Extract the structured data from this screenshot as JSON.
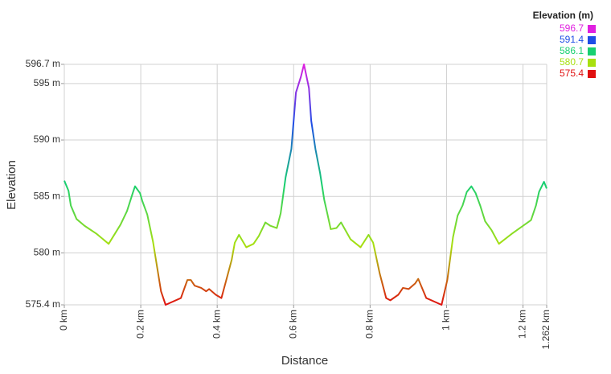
{
  "chart_data": {
    "type": "line",
    "legend_title": "Elevation (m)",
    "xlabel": "Distance",
    "ylabel": "Elevation",
    "color_scale": [
      {
        "value": 596.7,
        "color": "#e020e0"
      },
      {
        "value": 591.4,
        "color": "#1e4ee6"
      },
      {
        "value": 586.1,
        "color": "#18d070"
      },
      {
        "value": 580.7,
        "color": "#a8e010"
      },
      {
        "value": 575.4,
        "color": "#e01010"
      }
    ],
    "x": [
      0,
      0.011,
      0.017,
      0.032,
      0.053,
      0.084,
      0.116,
      0.147,
      0.164,
      0.179,
      0.185,
      0.198,
      0.204,
      0.217,
      0.232,
      0.242,
      0.253,
      0.265,
      0.305,
      0.322,
      0.331,
      0.341,
      0.358,
      0.371,
      0.379,
      0.396,
      0.411,
      0.423,
      0.438,
      0.446,
      0.457,
      0.476,
      0.495,
      0.509,
      0.526,
      0.539,
      0.556,
      0.566,
      0.579,
      0.594,
      0.606,
      0.619,
      0.627,
      0.64,
      0.646,
      0.657,
      0.669,
      0.68,
      0.688,
      0.697,
      0.712,
      0.724,
      0.749,
      0.775,
      0.796,
      0.808,
      0.825,
      0.842,
      0.853,
      0.874,
      0.886,
      0.901,
      0.918,
      0.926,
      0.947,
      0.987,
      1.002,
      1.017,
      1.029,
      1.042,
      1.053,
      1.065,
      1.076,
      1.088,
      1.101,
      1.118,
      1.137,
      1.171,
      1.221,
      1.234,
      1.242,
      1.255,
      1.262
    ],
    "values": [
      586.4,
      585.5,
      584.2,
      583.0,
      582.4,
      581.7,
      580.8,
      582.5,
      583.7,
      585.3,
      585.9,
      585.3,
      584.6,
      583.4,
      581.0,
      578.9,
      576.6,
      575.4,
      576.0,
      577.6,
      577.6,
      577.1,
      576.9,
      576.6,
      576.8,
      576.3,
      576.0,
      577.5,
      579.4,
      580.9,
      581.6,
      580.5,
      580.8,
      581.5,
      582.7,
      582.4,
      582.2,
      583.5,
      586.7,
      589.2,
      594.2,
      595.6,
      596.7,
      594.6,
      591.7,
      589.2,
      587.1,
      584.7,
      583.5,
      582.1,
      582.2,
      582.7,
      581.2,
      580.5,
      581.6,
      580.9,
      578.2,
      576.0,
      575.8,
      576.3,
      576.9,
      576.8,
      577.3,
      577.7,
      576.0,
      575.4,
      577.6,
      581.4,
      583.3,
      584.2,
      585.4,
      585.9,
      585.3,
      584.2,
      582.8,
      582.0,
      580.8,
      581.7,
      582.9,
      584.2,
      585.4,
      586.3,
      585.7
    ],
    "xlim": [
      0,
      1.262
    ],
    "xticks": [
      {
        "value": 0,
        "label": "0 km"
      },
      {
        "value": 0.2,
        "label": "0.2 km"
      },
      {
        "value": 0.4,
        "label": "0.4 km"
      },
      {
        "value": 0.6,
        "label": "0.6 km"
      },
      {
        "value": 0.8,
        "label": "0.8 km"
      },
      {
        "value": 1,
        "label": "1 km"
      },
      {
        "value": 1.2,
        "label": "1.2 km"
      },
      {
        "value": 1.262,
        "label": "1.262 km"
      }
    ],
    "ylim": [
      575.4,
      596.7
    ],
    "yticks": [
      {
        "value": 575.4,
        "label": "575.4 m"
      },
      {
        "value": 580,
        "label": "580 m"
      },
      {
        "value": 585,
        "label": "585 m"
      },
      {
        "value": 590,
        "label": "590 m"
      },
      {
        "value": 595,
        "label": "595 m"
      },
      {
        "value": 596.7,
        "label": "596.7 m"
      }
    ],
    "grid": true
  }
}
